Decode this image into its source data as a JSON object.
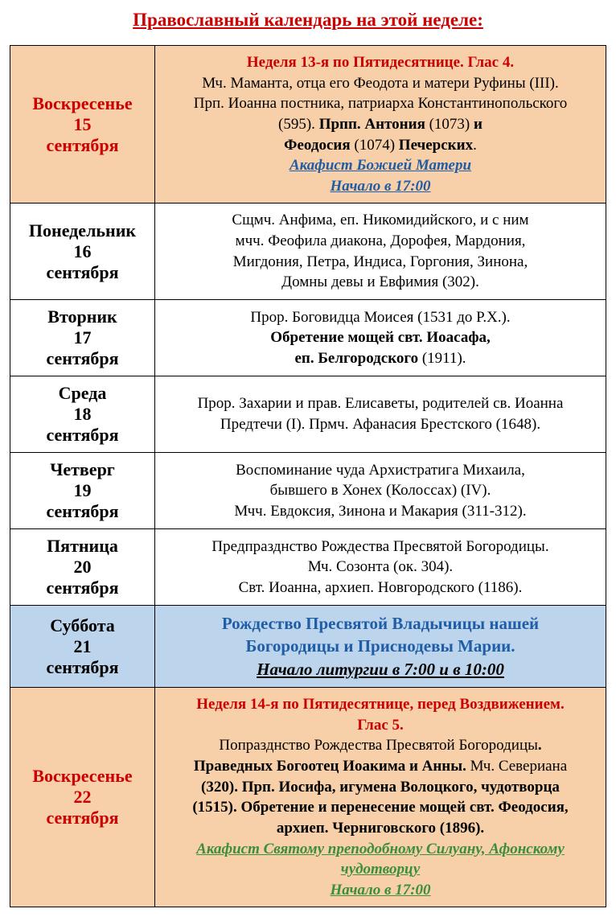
{
  "title": "Православный календарь на этой неделе:",
  "title_color": "#cc0000",
  "colors": {
    "red": "#cc0000",
    "blue": "#1f5da6",
    "green": "#3a8f3a",
    "black": "#000000",
    "bg_peach": "#f7cfa8",
    "bg_lightblue": "#bcd4ec"
  },
  "rows": [
    {
      "bg": "peach",
      "day_color": "red",
      "day_l1": "Воскресенье",
      "day_l2": "15",
      "day_l3": "сентября",
      "content": [
        {
          "text": "Неделя 13-я по Пятидесятнице. Глас 4.",
          "cls": "red bold"
        },
        {
          "text": "Мч. Маманта, отца его Феодота и матери Руфины (III).",
          "cls": "black"
        },
        {
          "text": "Прп. Иоанна постника, патриарха Константинопольского",
          "cls": "black"
        },
        {
          "spans": [
            {
              "text": "(595). ",
              "cls": "black"
            },
            {
              "text": "Прпп. Антония",
              "cls": "black bold"
            },
            {
              "text": " (1073) ",
              "cls": "black"
            },
            {
              "text": "и",
              "cls": "black bold"
            }
          ]
        },
        {
          "spans": [
            {
              "text": "Феодосия",
              "cls": "black bold"
            },
            {
              "text": " (1074) ",
              "cls": "black"
            },
            {
              "text": "Печерских",
              "cls": "black bold"
            },
            {
              "text": ".",
              "cls": "black"
            }
          ]
        },
        {
          "text": "Акафист  Божией Матери",
          "cls": "blue bold italic underline"
        },
        {
          "text": "Начало в 17:00",
          "cls": "blue bold italic underline"
        }
      ]
    },
    {
      "bg": "",
      "day_color": "black",
      "day_l1": "Понедельник",
      "day_l2": "16",
      "day_l3": "сентября",
      "content": [
        {
          "text": "Сщмч. Анфима, еп. Никомидийского, и с ним",
          "cls": "black"
        },
        {
          "text": "мчч. Феофила диакона, Дорофея, Мардония,",
          "cls": "black"
        },
        {
          "text": "Мигдония, Петра, Индиса, Горгония, Зинона,",
          "cls": "black"
        },
        {
          "text": "Домны девы и Евфимия (302).",
          "cls": "black"
        }
      ]
    },
    {
      "bg": "",
      "day_color": "black",
      "day_l1": "Вторник",
      "day_l2": "17",
      "day_l3": "сентября",
      "content": [
        {
          "text": "Прор. Боговидца Моисея (1531 до Р.Х.).",
          "cls": "black"
        },
        {
          "text": "Обретение мощей свт. Иоасафа,",
          "cls": "black bold"
        },
        {
          "spans": [
            {
              "text": "еп. Белгородского",
              "cls": "black bold"
            },
            {
              "text": " (1911).",
              "cls": "black"
            }
          ]
        }
      ]
    },
    {
      "bg": "",
      "day_color": "black",
      "day_l1": "Среда",
      "day_l2": "18",
      "day_l3": "сентября",
      "content": [
        {
          "text": "Прор. Захарии и прав. Елисаветы, родителей св. Иоанна",
          "cls": "black"
        },
        {
          "text": "Предтечи (I). Прмч. Афанасия Брестского (1648).",
          "cls": "black"
        }
      ]
    },
    {
      "bg": "",
      "day_color": "black",
      "day_l1": "Четверг",
      "day_l2": "19",
      "day_l3": "сентября",
      "content": [
        {
          "text": "Воспоминание чуда Архистратига Михаила,",
          "cls": "black"
        },
        {
          "text": "бывшего в Хонех (Колоссах) (IV).",
          "cls": "black"
        },
        {
          "text": "Мчч. Евдоксия, Зинона и Макария (311-312).",
          "cls": "black"
        }
      ]
    },
    {
      "bg": "",
      "day_color": "black",
      "day_l1": "Пятница",
      "day_l2": "20",
      "day_l3": "сентября",
      "content": [
        {
          "text": "Предпразднство Рождества Пресвятой Богородицы.",
          "cls": "black"
        },
        {
          "text": "Мч. Созонта (ок. 304).",
          "cls": "black"
        },
        {
          "text": "Свт. Иоанна, архиеп. Новгородского (1186).",
          "cls": "black"
        }
      ]
    },
    {
      "bg": "lightblue",
      "day_color": "black",
      "day_l1": "Суббота",
      "day_l2": "21",
      "day_l3": "сентября",
      "content": [
        {
          "text": "Рождество Пресвятой Владычицы нашей",
          "cls": "blue bold"
        },
        {
          "text": "Богородицы и Приснодевы Марии.",
          "cls": "blue bold"
        },
        {
          "text": "Начало литургии в 7:00 и в 10:00",
          "cls": "black bold italic underline"
        }
      ]
    },
    {
      "bg": "peach",
      "day_color": "red",
      "day_l1": "Воскресенье",
      "day_l2": "22",
      "day_l3": "сентября",
      "content": [
        {
          "text": "Неделя 14-я по Пятидесятнице, перед Воздвижением.",
          "cls": "red bold"
        },
        {
          "text": "Глас 5.",
          "cls": "red bold"
        },
        {
          "spans": [
            {
              "text": "Попразднство Рождества Пресвятой Богородицы",
              "cls": "black"
            },
            {
              "text": ".",
              "cls": "black bold"
            }
          ]
        },
        {
          "spans": [
            {
              "text": "Праведных Богоотец Иоакима и Анны. ",
              "cls": "black bold"
            },
            {
              "text": "Мч. Севериана",
              "cls": "black"
            }
          ]
        },
        {
          "text": "(320). Прп. Иосифа, игумена Волоцкого, чудотворца",
          "cls": "black bold"
        },
        {
          "text": "(1515). Обретение и перенесение мощей свт. Феодосия,",
          "cls": "black bold"
        },
        {
          "text": "архиеп. Черниговского (1896).",
          "cls": "black bold"
        },
        {
          "text": "Акафист Святому преподобному Силуану, Афонскому",
          "cls": "green bold italic underline"
        },
        {
          "text": "чудотворцу",
          "cls": "green bold italic underline"
        },
        {
          "text": "Начало в 17:00",
          "cls": "green bold italic underline"
        }
      ]
    }
  ]
}
